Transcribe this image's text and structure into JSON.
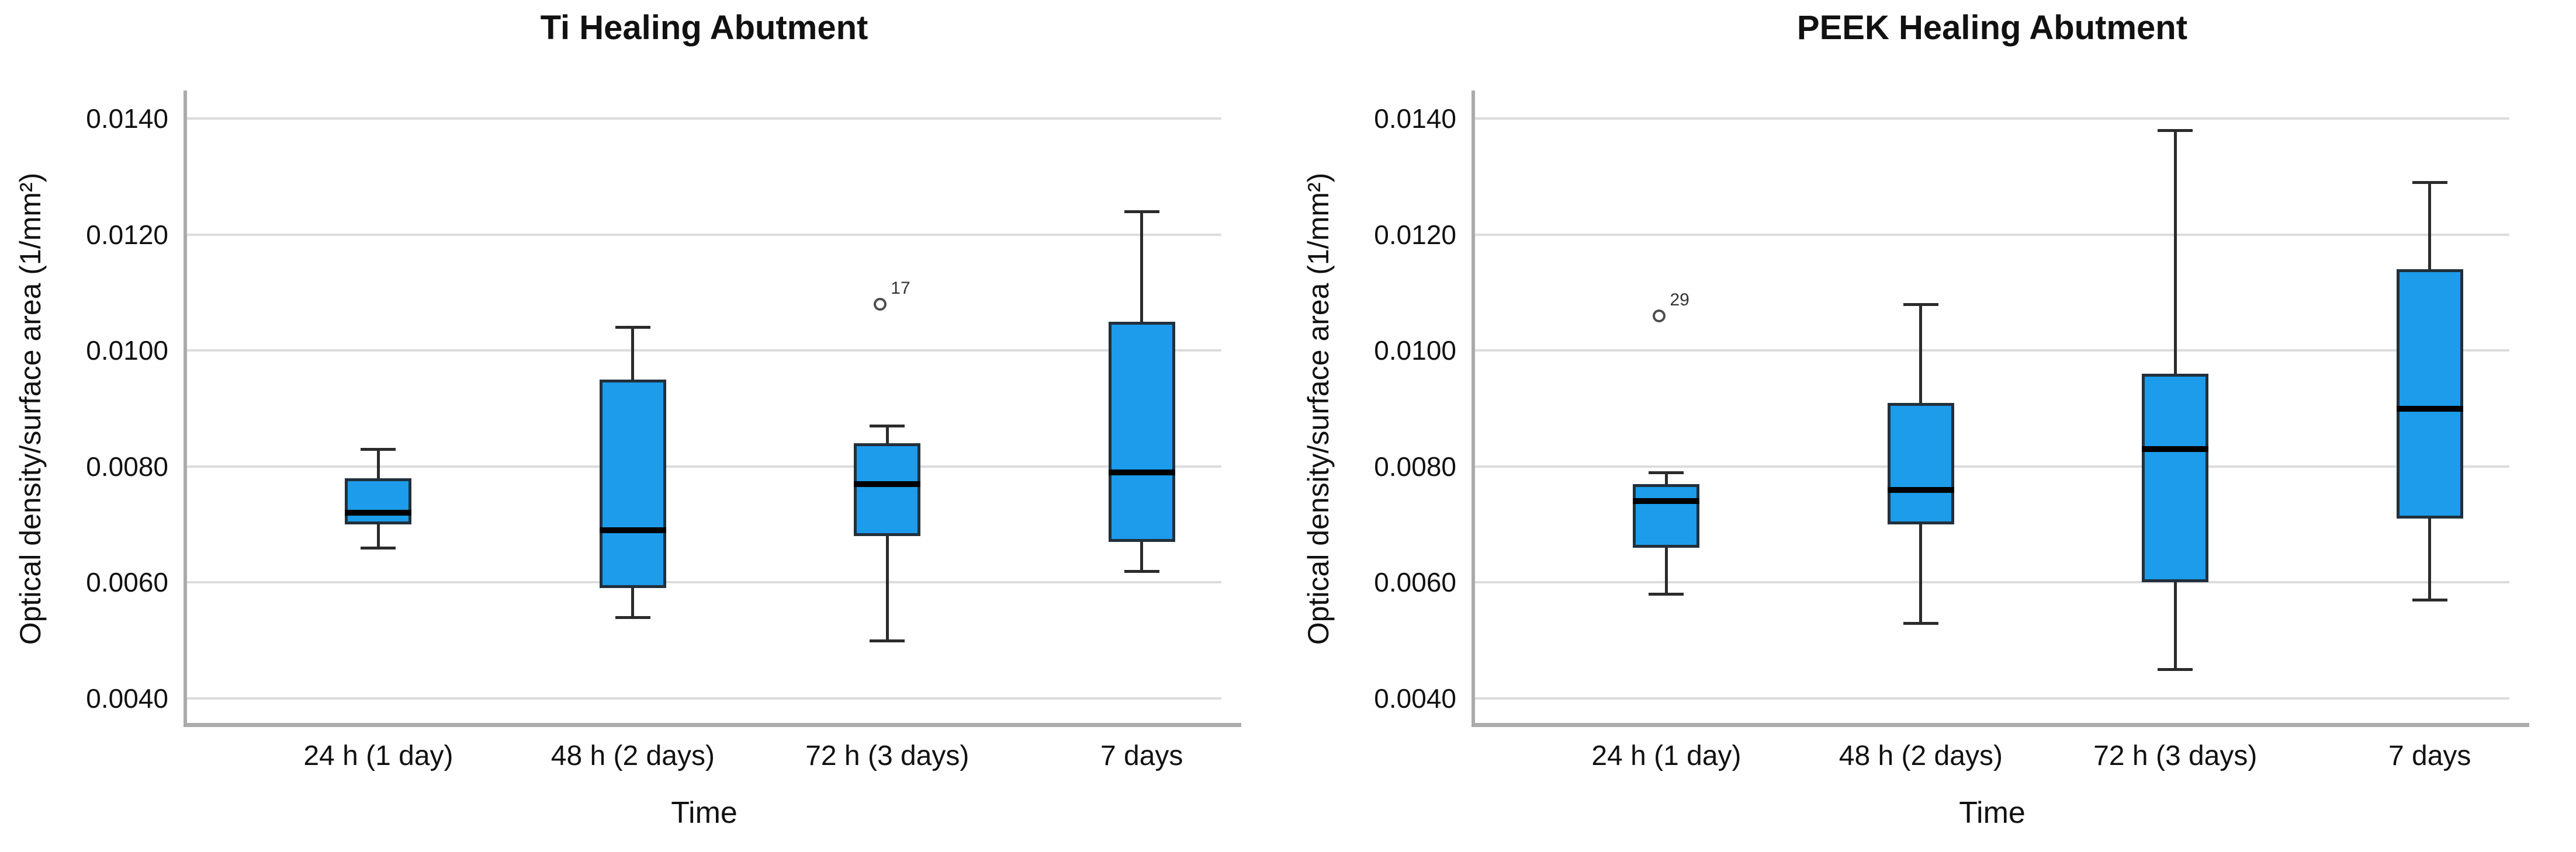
{
  "colors": {
    "box_fill": "#1C9CEA",
    "box_border": "#22303c",
    "median": "#000000",
    "whisker": "#2b2b2b",
    "gridline": "#dcdcdc",
    "axis": "#ababab",
    "outlier_stroke": "#4d4d4d",
    "background": "#ffffff"
  },
  "chart_data": [
    {
      "type": "boxplot",
      "title": "Ti Healing Abutment",
      "xlabel": "Time",
      "ylabel": "Optical density/surface area (1/mm²)",
      "ylim": [
        0.0035,
        0.0145
      ],
      "ytick_labels": [
        "0.0040",
        "0.0060",
        "0.0080",
        "0.0100",
        "0.0120",
        "0.0140"
      ],
      "ytick_values": [
        0.004,
        0.006,
        0.008,
        0.01,
        0.012,
        0.014
      ],
      "grid": true,
      "categories": [
        "24 h (1 day)",
        "48 h (2 days)",
        "72 h (3 days)",
        "7 days"
      ],
      "boxes": [
        {
          "category": "24 h (1 day)",
          "whisker_low": 0.0066,
          "q1": 0.007,
          "median": 0.0072,
          "q3": 0.0078,
          "whisker_high": 0.0083
        },
        {
          "category": "48 h (2 days)",
          "whisker_low": 0.0054,
          "q1": 0.0059,
          "median": 0.0069,
          "q3": 0.0095,
          "whisker_high": 0.0104
        },
        {
          "category": "72 h (3 days)",
          "whisker_low": 0.005,
          "q1": 0.0068,
          "median": 0.0077,
          "q3": 0.0084,
          "whisker_high": 0.0087
        },
        {
          "category": "7 days",
          "whisker_low": 0.0062,
          "q1": 0.0067,
          "median": 0.0079,
          "q3": 0.0105,
          "whisker_high": 0.0124
        }
      ],
      "outliers": [
        {
          "category_index": 2,
          "value": 0.0108,
          "label": "17"
        }
      ]
    },
    {
      "type": "boxplot",
      "title": "PEEK Healing Abutment",
      "xlabel": "Time",
      "ylabel": "Optical density/surface area (1/mm²)",
      "ylim": [
        0.0035,
        0.0145
      ],
      "ytick_labels": [
        "0.0040",
        "0.0060",
        "0.0080",
        "0.0100",
        "0.0120",
        "0.0140"
      ],
      "ytick_values": [
        0.004,
        0.006,
        0.008,
        0.01,
        0.012,
        0.014
      ],
      "grid": true,
      "categories": [
        "24 h (1 day)",
        "48 h (2 days)",
        "72 h (3 days)",
        "7 days"
      ],
      "boxes": [
        {
          "category": "24 h (1 day)",
          "whisker_low": 0.0058,
          "q1": 0.0066,
          "median": 0.0074,
          "q3": 0.0077,
          "whisker_high": 0.0079
        },
        {
          "category": "48 h (2 days)",
          "whisker_low": 0.0053,
          "q1": 0.007,
          "median": 0.0076,
          "q3": 0.0091,
          "whisker_high": 0.0108
        },
        {
          "category": "72 h (3 days)",
          "whisker_low": 0.0045,
          "q1": 0.006,
          "median": 0.0083,
          "q3": 0.0096,
          "whisker_high": 0.0138
        },
        {
          "category": "7 days",
          "whisker_low": 0.0057,
          "q1": 0.0071,
          "median": 0.009,
          "q3": 0.0114,
          "whisker_high": 0.0129
        }
      ],
      "outliers": [
        {
          "category_index": 0,
          "value": 0.0106,
          "label": "29"
        }
      ]
    }
  ]
}
